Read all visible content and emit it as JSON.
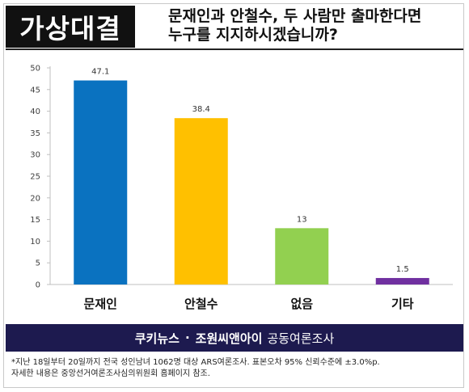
{
  "header": {
    "badge": "가상대결",
    "question_line1": "문재인과 안철수, 두 사람만 출마한다면",
    "question_line2": "누구를 지지하시겠습니까?"
  },
  "chart_data": {
    "type": "bar",
    "title": "",
    "xlabel": "",
    "ylabel": "",
    "categories": [
      "문재인",
      "안철수",
      "없음",
      "기타"
    ],
    "values": [
      47.1,
      38.4,
      13,
      1.5
    ],
    "value_labels": [
      "47.1",
      "38.4",
      "13",
      "1.5"
    ],
    "colors": [
      "#0a72c0",
      "#ffc000",
      "#92d050",
      "#7030a0"
    ],
    "ylim": [
      0,
      50
    ],
    "yticks": [
      0,
      5,
      10,
      15,
      20,
      25,
      30,
      35,
      40,
      45,
      50
    ],
    "grid": false,
    "legend": "none"
  },
  "footer": {
    "publisher1": "쿠키뉴스",
    "separator": "·",
    "publisher2": "조원씨앤아이",
    "survey_type": "공동여론조사"
  },
  "note": {
    "line1": "*지난 18일부터 20일까지 전국 성인남녀 1062명 대상 ARS여론조사. 표본오차 95% 신뢰수준에 ±3.0%p.",
    "line2": "자세한 내용은 중앙선거여론조사심의위원회 홈페이지 참조."
  }
}
